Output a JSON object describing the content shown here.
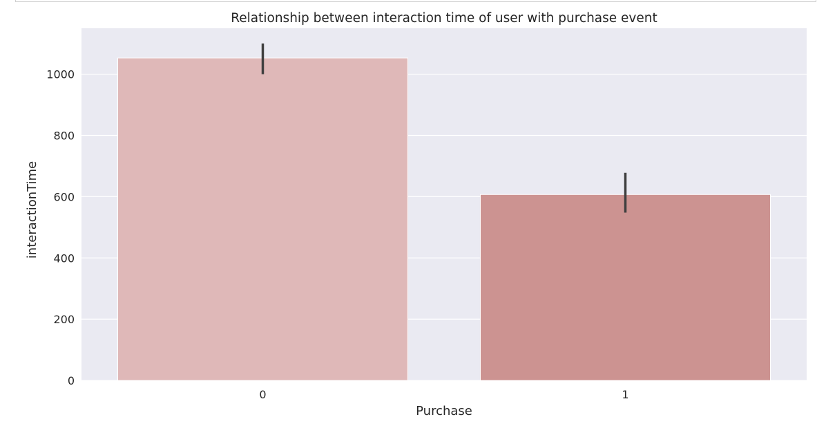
{
  "chart_data": {
    "type": "bar",
    "title": "Relationship between interaction time of user with purchase event",
    "xlabel": "Purchase",
    "ylabel": "interactionTime",
    "categories": [
      "0",
      "1"
    ],
    "values": [
      1053,
      607
    ],
    "error_bars": [
      {
        "low": 1000,
        "high": 1100
      },
      {
        "low": 548,
        "high": 678
      }
    ],
    "ylim": [
      0,
      1150
    ],
    "yticks": [
      0,
      200,
      400,
      600,
      800,
      1000
    ],
    "grid": true,
    "bar_colors": [
      "#dfb8b8",
      "#cc9391"
    ],
    "background_color": "#eaeaf2",
    "grid_color": "#ffffff",
    "errorbar_color": "#3f3f3f"
  }
}
